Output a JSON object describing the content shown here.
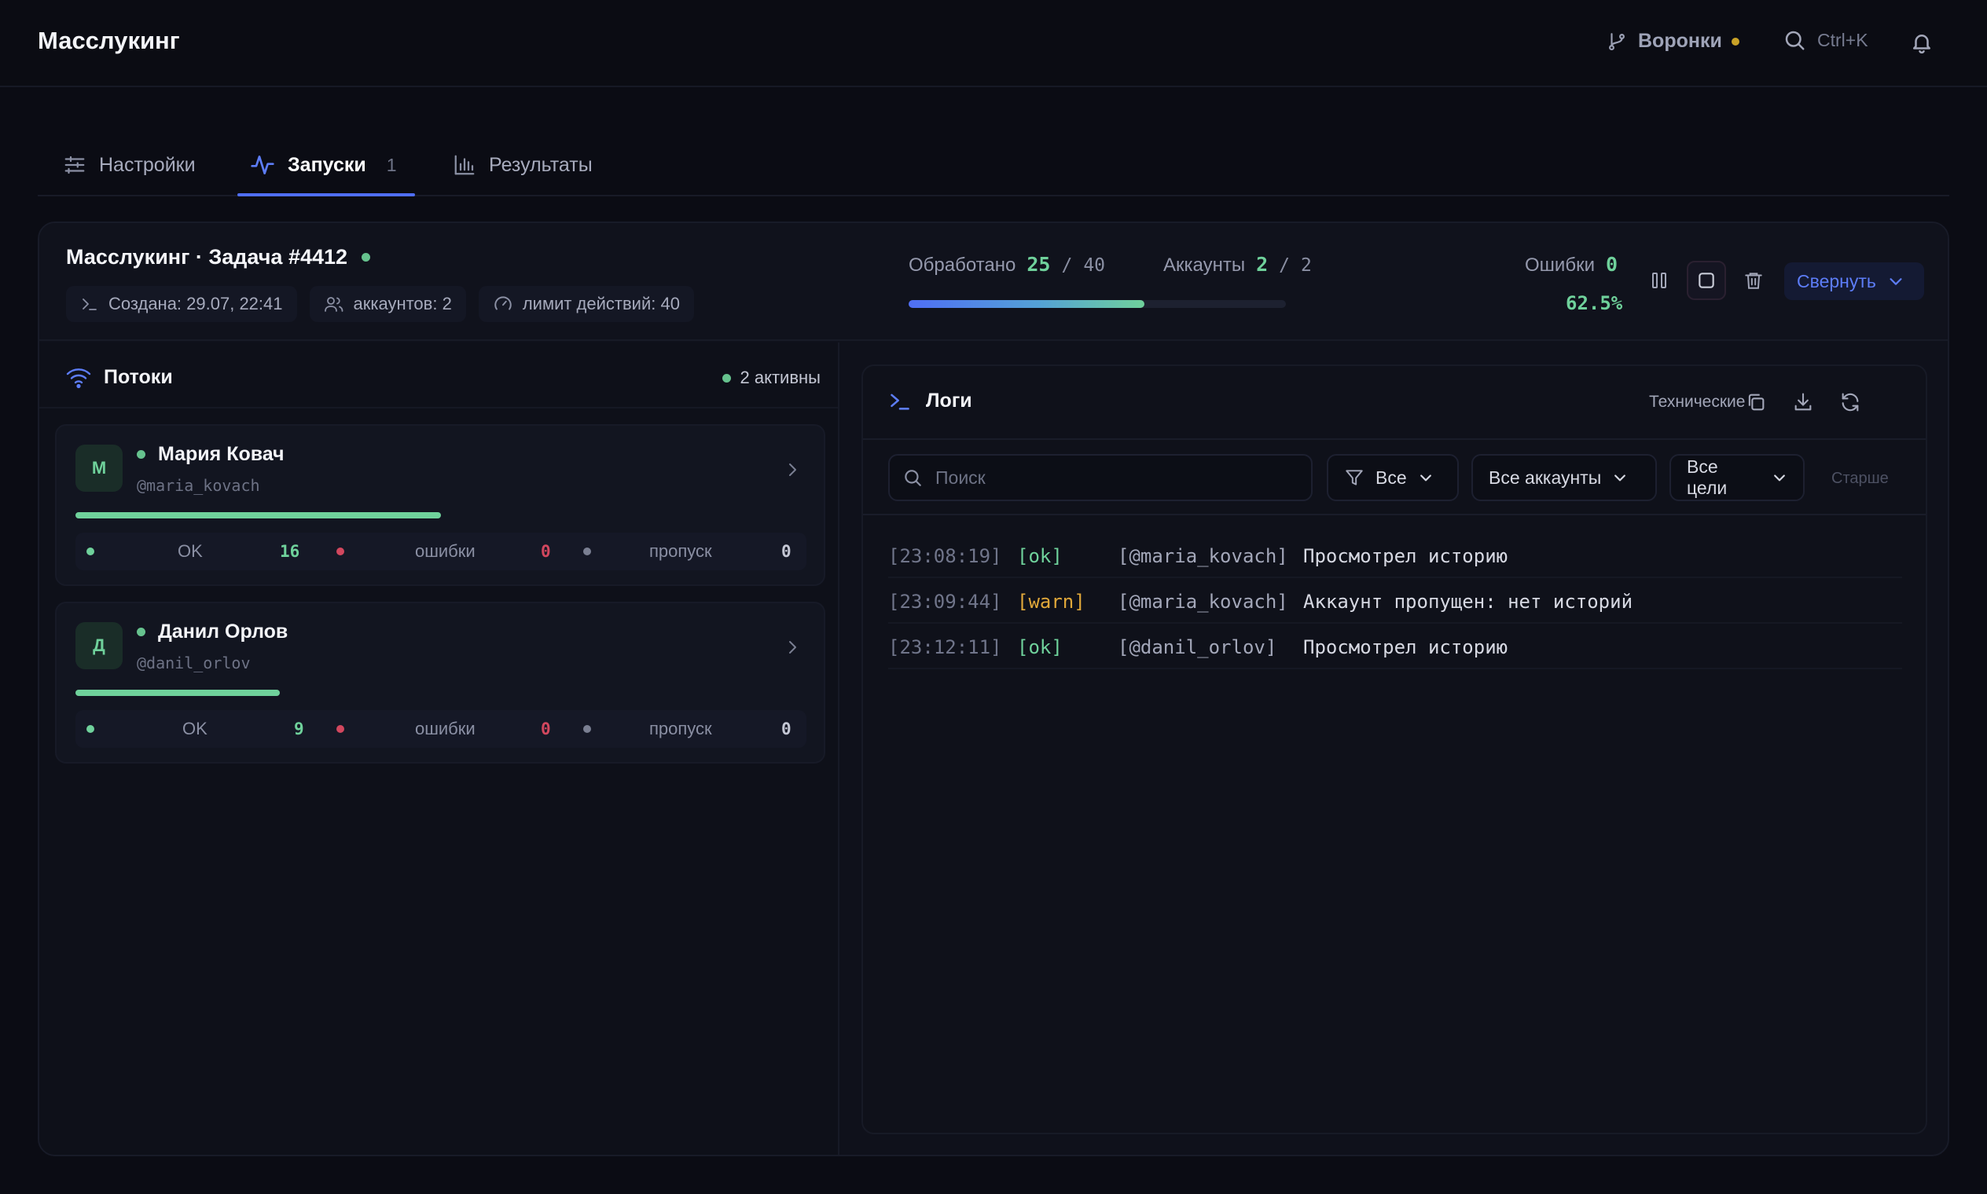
{
  "app": {
    "title": "Масслукинг"
  },
  "topbar": {
    "funnels_label": "Воронки",
    "search_hint": "Ctrl+K"
  },
  "tabs": [
    {
      "label": "Настройки"
    },
    {
      "label": "Запуски",
      "count": "1",
      "active": true
    },
    {
      "label": "Результаты"
    }
  ],
  "job": {
    "title": "Масслукинг · Задача #4412",
    "chips": [
      "Создана: 29.07, 22:41",
      "аккаунтов: 2",
      "лимит действий: 40"
    ],
    "processed_label": "Обработано",
    "processed": "25",
    "processed_total": "40",
    "accounts_label": "Аккаунты",
    "accounts": "2",
    "accounts_total": "2",
    "errors_label": "Ошибки",
    "errors": "0",
    "progress_fraction": 0.625,
    "percent": "62.5%",
    "collapse_label": "Свернуть",
    "slash": "/"
  },
  "streams": {
    "title": "Потоки",
    "active_label": "2 активны",
    "items": [
      {
        "avatar": "М",
        "name": "Мария Ковач",
        "handle": "@maria_kovach",
        "progress_fraction": 0.5,
        "ok_label": "OK",
        "ok": "16",
        "err_label": "ошибки",
        "err": "0",
        "skip_label": "пропуск",
        "skip": "0"
      },
      {
        "avatar": "Д",
        "name": "Данил Орлов",
        "handle": "@danil_orlov",
        "progress_fraction": 0.28,
        "ok_label": "OK",
        "ok": "9",
        "err_label": "ошибки",
        "err": "0",
        "skip_label": "пропуск",
        "skip": "0"
      }
    ]
  },
  "logs": {
    "title": "Логи",
    "tech_label": "Технические",
    "search_placeholder": "Поиск",
    "filter_levels": "Все",
    "filter_accounts": "Все аккаунты",
    "filter_targets": "Все цели",
    "older_label": "Старше",
    "lines": [
      {
        "time": "[23:08:19]",
        "level": "[ok]",
        "account": "[@maria_kovach]",
        "message": "Просмотрел историю"
      },
      {
        "time": "[23:09:44]",
        "level": "[warn]",
        "account": "[@maria_kovach]",
        "message": "Аккаунт пропущен: нет историй"
      },
      {
        "time": "[23:12:11]",
        "level": "[ok]",
        "account": "[@danil_orlov]",
        "message": "Просмотрел историю"
      }
    ]
  },
  "colors": {
    "accent": "#4f6ef5",
    "success": "#6fd19b",
    "warning": "#e0a83a",
    "error": "#d2475e",
    "neutral_dot": "#7a7f92"
  }
}
